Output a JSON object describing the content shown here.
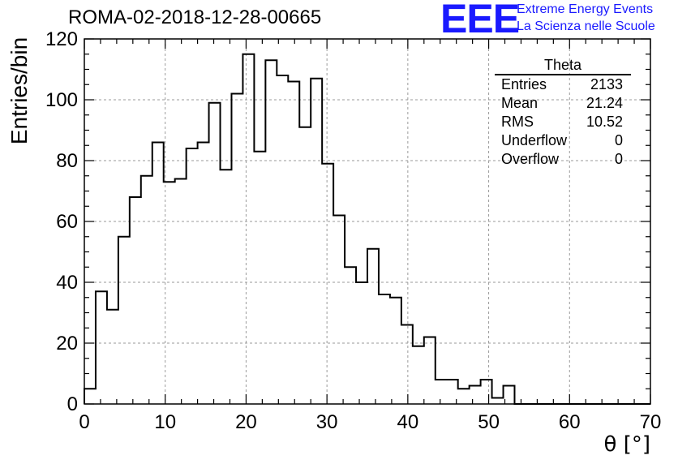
{
  "header": {
    "run_title": "ROMA-02-2018-12-28-00665",
    "logo_text": "EEE",
    "logo_line1": "Extreme Energy Events",
    "logo_line2": "La Scienza nelle Scuole"
  },
  "colors": {
    "logo": "#1a1aff",
    "line": "#000000",
    "grid": "#9a9a9a"
  },
  "stats": {
    "title": "Theta",
    "rows": [
      {
        "label": "Entries",
        "value": "2133"
      },
      {
        "label": "Mean",
        "value": "21.24"
      },
      {
        "label": "RMS",
        "value": "10.52"
      },
      {
        "label": "Underflow",
        "value": "0"
      },
      {
        "label": "Overflow",
        "value": "0"
      }
    ]
  },
  "chart_data": {
    "type": "bar",
    "xlabel": "θ [°]",
    "ylabel": "Entries/bin",
    "xlim": [
      0,
      70
    ],
    "ylim": [
      0,
      120
    ],
    "grid": true,
    "xticks": [
      "0",
      "10",
      "20",
      "30",
      "40",
      "50",
      "60",
      "70"
    ],
    "yticks": [
      "0",
      "20",
      "40",
      "60",
      "80",
      "100",
      "120"
    ],
    "bin_width": 1.4,
    "values": [
      5,
      37,
      31,
      55,
      68,
      75,
      86,
      73,
      74,
      84,
      86,
      99,
      77,
      102,
      115,
      83,
      113,
      108,
      106,
      91,
      107,
      79,
      62,
      45,
      40,
      51,
      36,
      35,
      26,
      19,
      22,
      8,
      8,
      5,
      6,
      8,
      2,
      6,
      0,
      0,
      0,
      0,
      0,
      0,
      0,
      0,
      0,
      0,
      0,
      0
    ]
  }
}
